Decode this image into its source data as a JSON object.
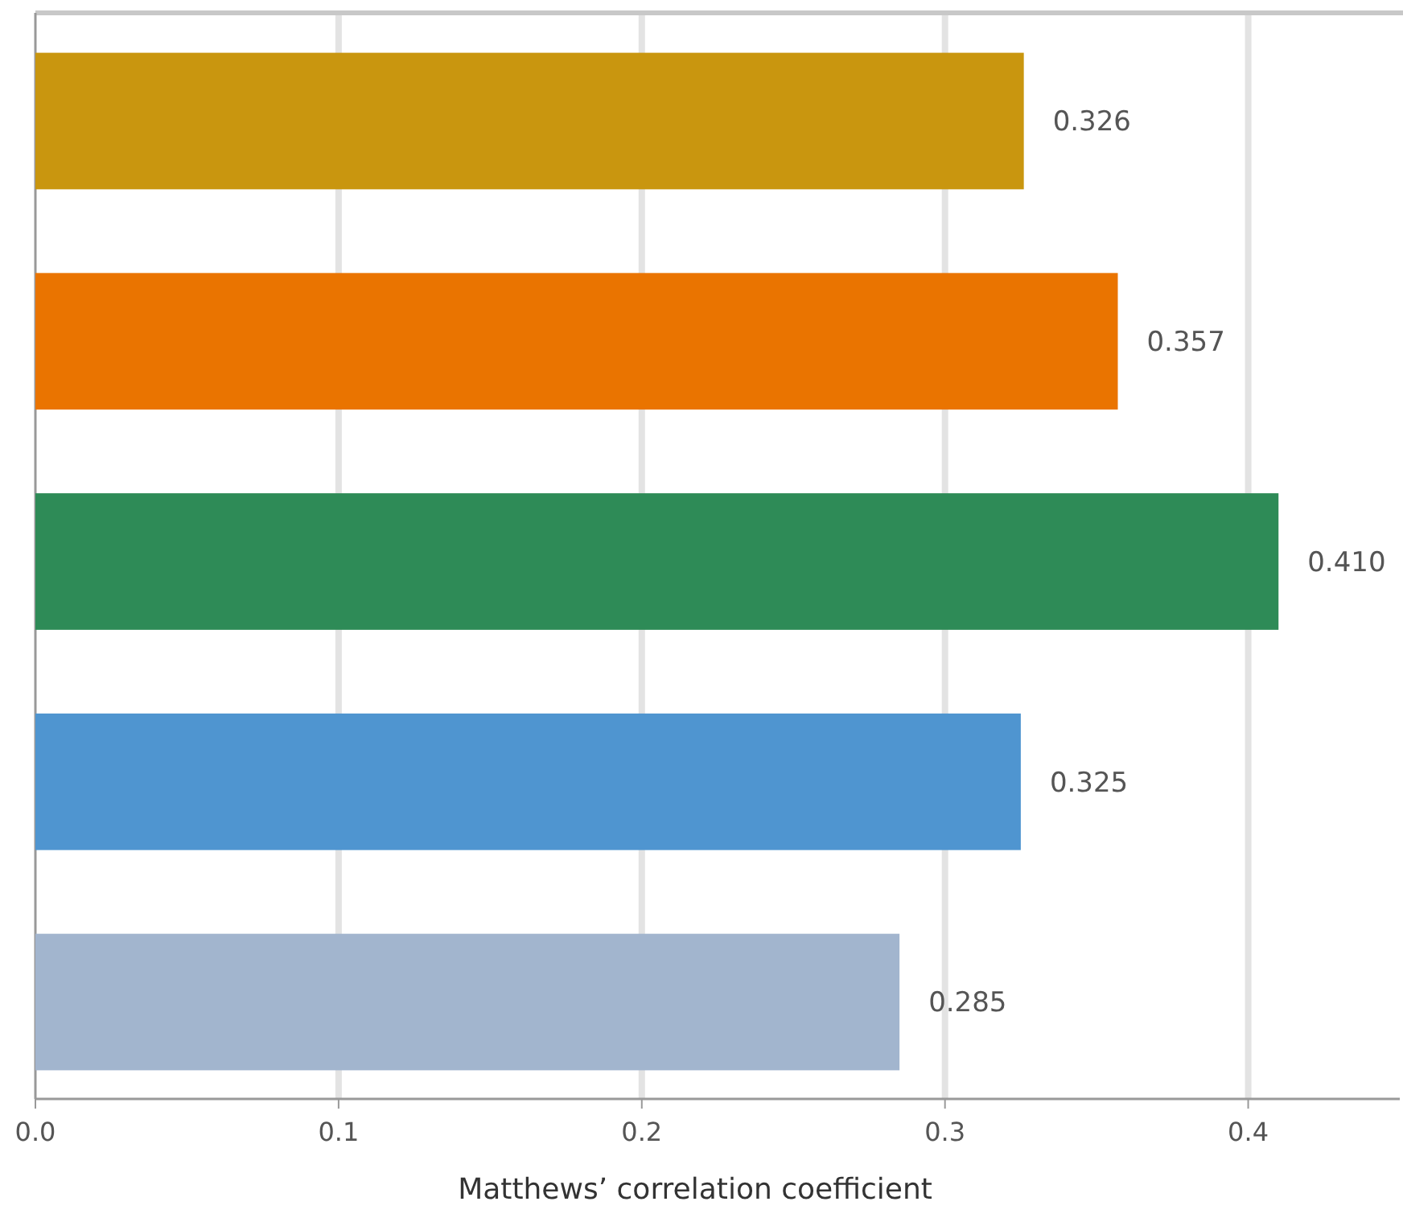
{
  "chart_data": {
    "type": "bar",
    "orientation": "horizontal",
    "xlabel": "Matthews’ correlation coefficient",
    "categories": [
      null,
      null,
      null,
      null,
      null
    ],
    "values": [
      0.326,
      0.357,
      0.41,
      0.325,
      0.285
    ],
    "colors": [
      "#c9960f",
      "#ea7400",
      "#2e8b57",
      "#4f95d0",
      "#a2b5ce"
    ],
    "value_labels": [
      "0.326",
      "0.357",
      "0.410",
      "0.325",
      "0.285"
    ],
    "xlim": [
      0,
      0.45
    ],
    "xticks": [
      {
        "value": 0,
        "label": "0.0"
      },
      {
        "value": 0.1,
        "label": "0.1"
      },
      {
        "value": 0.2,
        "label": "0.2"
      },
      {
        "value": 0.3,
        "label": "0.3"
      },
      {
        "value": 0.4,
        "label": "0.4"
      }
    ],
    "grid": "x"
  }
}
